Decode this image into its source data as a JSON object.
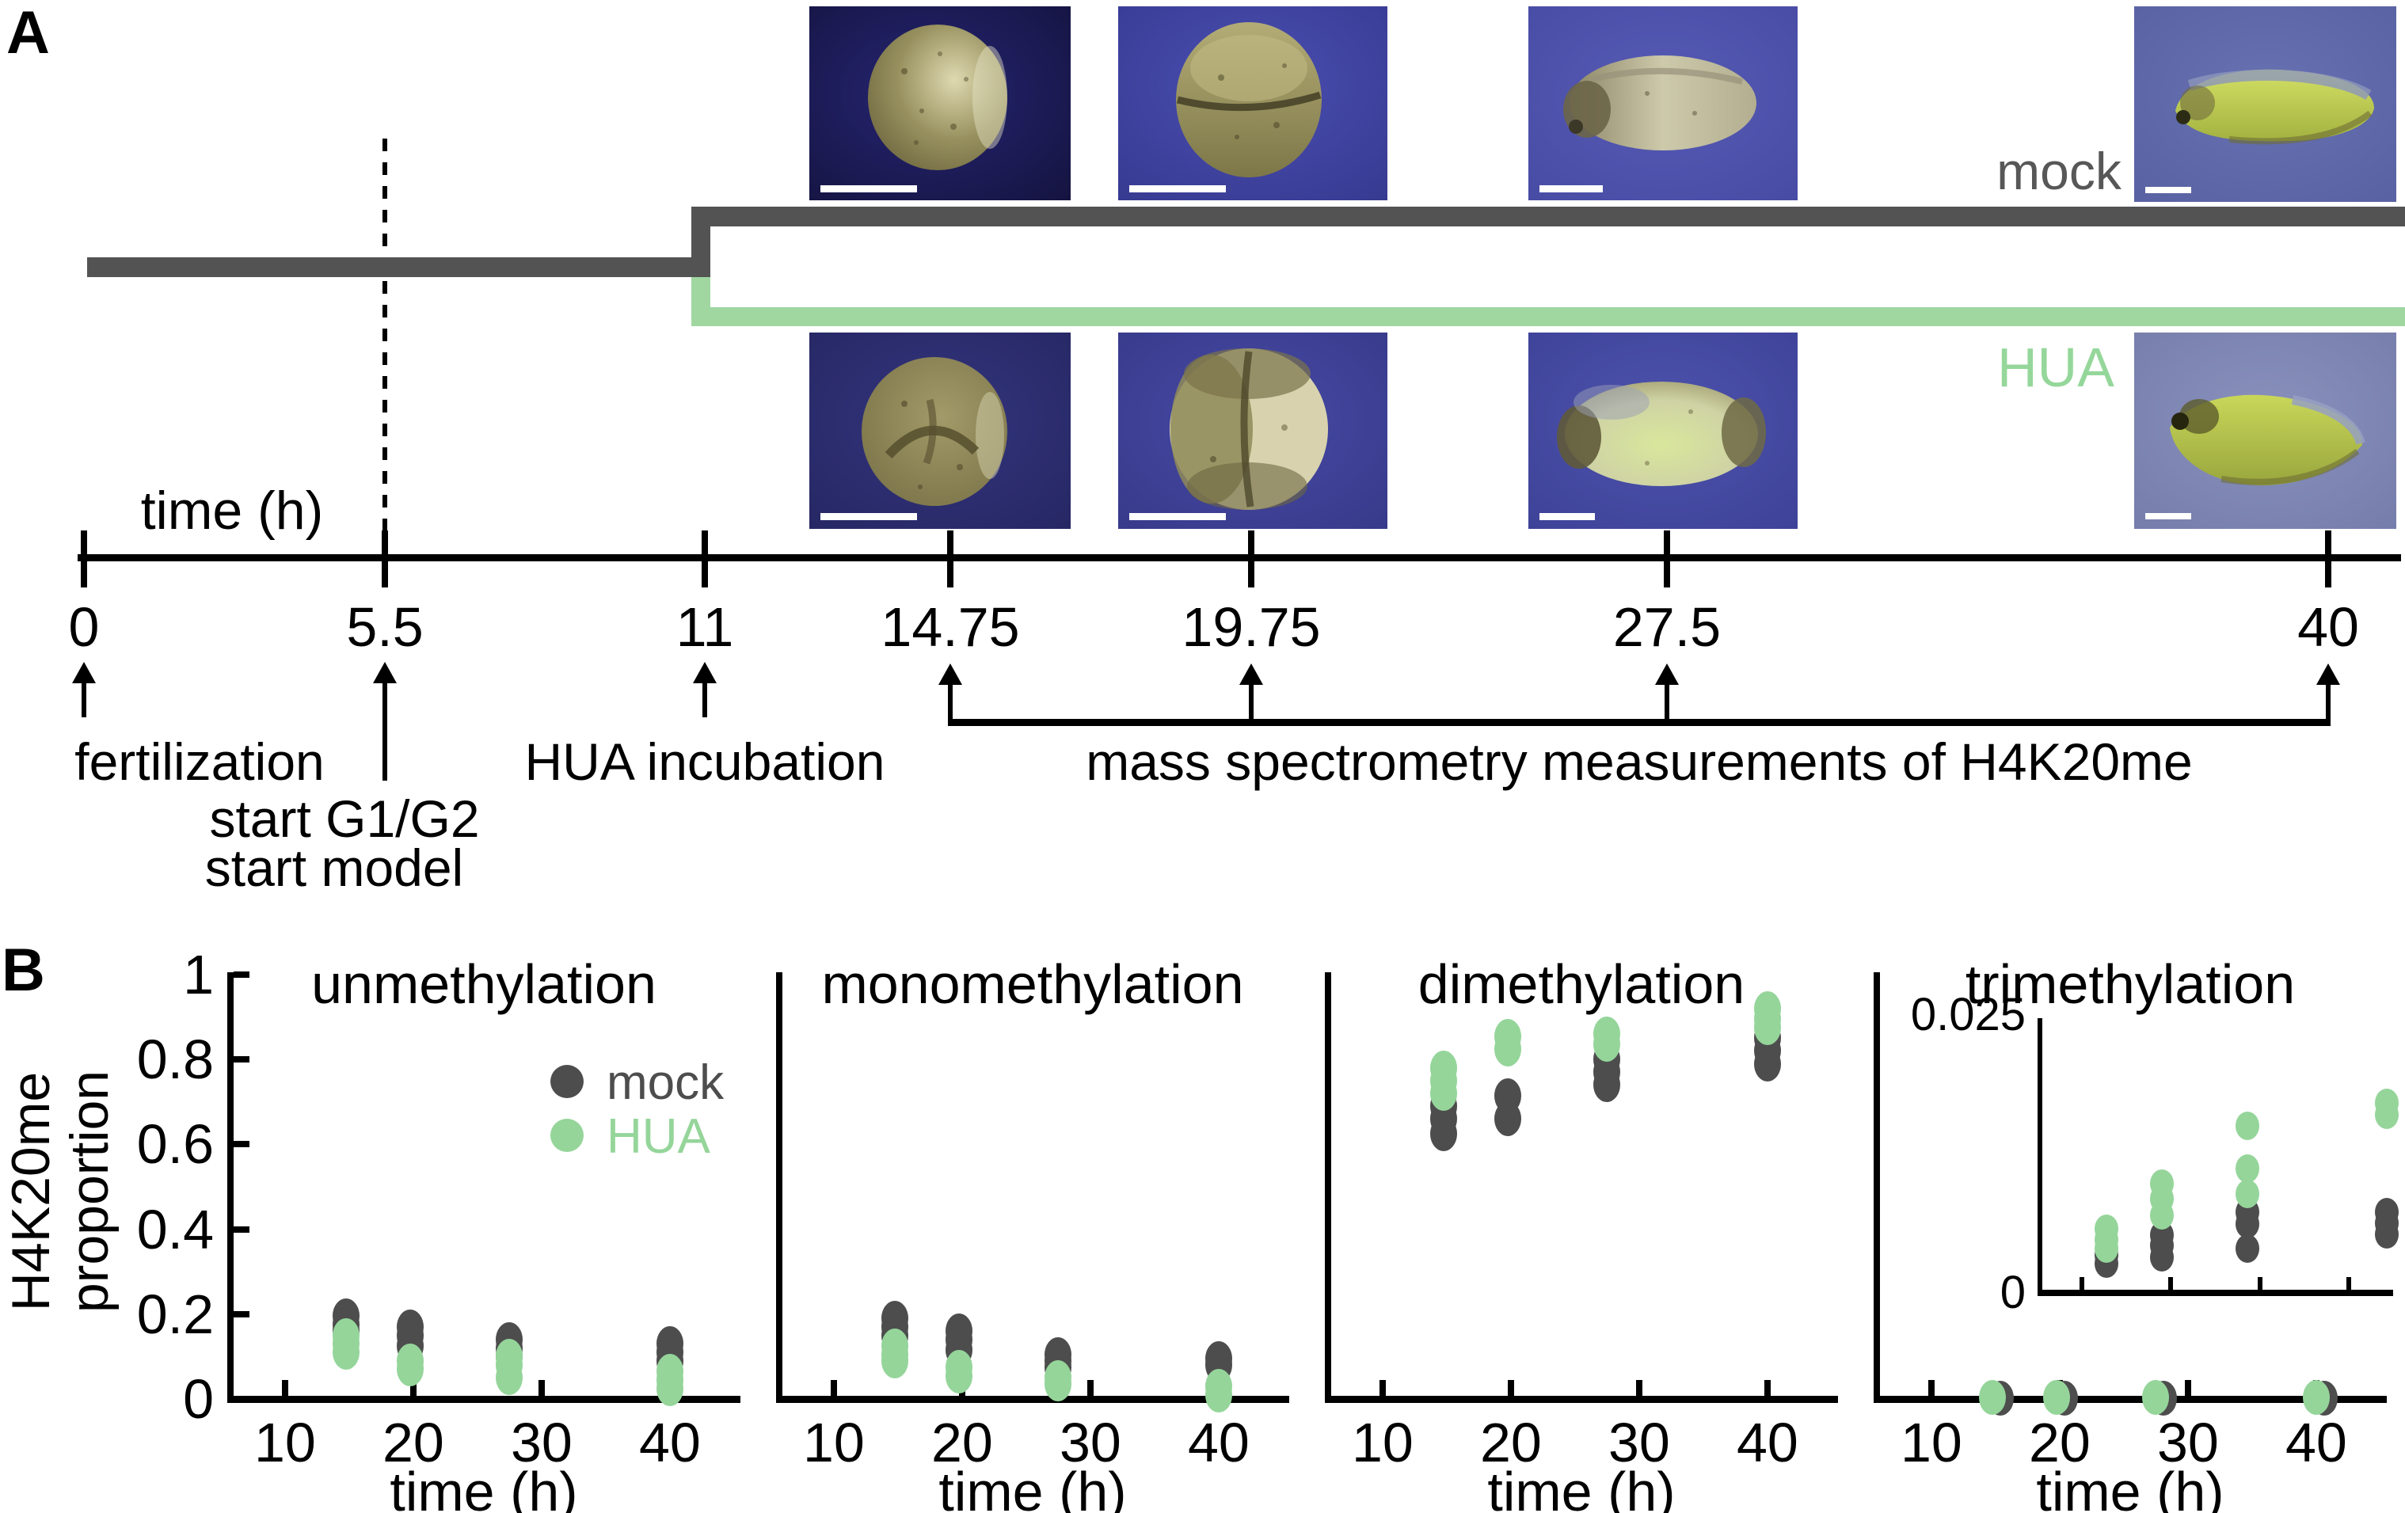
{
  "panel_a": {
    "label": "A",
    "timeline": {
      "axis_label": "time (h)",
      "ticks": [
        {
          "t": 0,
          "label": "0"
        },
        {
          "t": 5.5,
          "label": "5.5"
        },
        {
          "t": 11,
          "label": "11"
        },
        {
          "t": 14.75,
          "label": "14.75"
        },
        {
          "t": 19.75,
          "label": "19.75"
        },
        {
          "t": 27.5,
          "label": "27.5"
        },
        {
          "t": 40,
          "label": "40"
        }
      ]
    },
    "branches": {
      "mock_label": "mock",
      "hua_label": "HUA"
    },
    "annotations": {
      "fertilization": "fertilization",
      "start_g1g2": "start G1/G2",
      "start_model": "start model",
      "hua_incubation": "HUA incubation",
      "mass_spec": "mass spectrometry measurements of H4K20me"
    },
    "colors": {
      "mock_line": "#535353",
      "hua_line": "#a0d7a1",
      "mock_text": "#575757",
      "hua_text": "#95d79a"
    },
    "images": [
      {
        "name": "mock-embryo-14.75h",
        "bg": "#1d1c55"
      },
      {
        "name": "mock-embryo-19.75h",
        "bg": "#3c3f9f"
      },
      {
        "name": "mock-embryo-27.5h",
        "bg": "#4c50ac"
      },
      {
        "name": "mock-embryo-40h",
        "bg": "#5d66a8"
      },
      {
        "name": "hua-embryo-14.75h",
        "bg": "#2b2d74"
      },
      {
        "name": "hua-embryo-19.75h",
        "bg": "#3d3f94"
      },
      {
        "name": "hua-embryo-27.5h",
        "bg": "#4347a2"
      },
      {
        "name": "hua-embryo-40h",
        "bg": "#7e86b4"
      }
    ]
  },
  "panel_b": {
    "label": "B",
    "y_axis_label": [
      "H4K20me",
      "proportion"
    ],
    "legend": [
      {
        "label": "mock",
        "color": "#4d4d4d"
      },
      {
        "label": "HUA",
        "color": "#95d59a"
      }
    ]
  },
  "chart_data": [
    {
      "type": "scatter",
      "title": "unmethylation",
      "xlabel": "time (h)",
      "ylabel": "H4K20me proportion",
      "xlim": [
        5.5,
        45
      ],
      "ylim": [
        0,
        1
      ],
      "grid": false,
      "xticks": [
        {
          "t": 10,
          "label": "10"
        },
        {
          "t": 20,
          "label": "20"
        },
        {
          "t": 30,
          "label": "30"
        },
        {
          "t": 40,
          "label": "40"
        }
      ],
      "yticks": [
        {
          "v": 0,
          "label": "0"
        },
        {
          "v": 0.2,
          "label": "0.2"
        },
        {
          "v": 0.4,
          "label": "0.4"
        },
        {
          "v": 0.6,
          "label": "0.6"
        },
        {
          "v": 0.8,
          "label": "0.8"
        },
        {
          "v": 1,
          "label": "1"
        }
      ],
      "series": [
        {
          "name": "mock",
          "color": "#4d4d4d",
          "points": [
            [
              14.75,
              0.195
            ],
            [
              14.75,
              0.175
            ],
            [
              14.75,
              0.16
            ],
            [
              19.75,
              0.17
            ],
            [
              19.75,
              0.15
            ],
            [
              19.75,
              0.125
            ],
            [
              27.5,
              0.14
            ],
            [
              27.5,
              0.12
            ],
            [
              27.5,
              0.1
            ],
            [
              40,
              0.13
            ],
            [
              40,
              0.11
            ],
            [
              40,
              0.09
            ]
          ]
        },
        {
          "name": "HUA",
          "color": "#95d59a",
          "points": [
            [
              14.75,
              0.15
            ],
            [
              14.75,
              0.13
            ],
            [
              14.75,
              0.11
            ],
            [
              19.75,
              0.09
            ],
            [
              19.75,
              0.07
            ],
            [
              27.5,
              0.1
            ],
            [
              27.5,
              0.08
            ],
            [
              27.5,
              0.05
            ],
            [
              40,
              0.065
            ],
            [
              40,
              0.045
            ],
            [
              40,
              0.025
            ]
          ]
        }
      ]
    },
    {
      "type": "scatter",
      "title": "monomethylation",
      "xlabel": "time (h)",
      "xlim": [
        5.5,
        45
      ],
      "ylim": [
        0,
        1
      ],
      "grid": false,
      "xticks": [
        {
          "t": 10,
          "label": "10"
        },
        {
          "t": 20,
          "label": "20"
        },
        {
          "t": 30,
          "label": "30"
        },
        {
          "t": 40,
          "label": "40"
        }
      ],
      "yticks": [],
      "series": [
        {
          "name": "mock",
          "color": "#4d4d4d",
          "points": [
            [
              14.75,
              0.19
            ],
            [
              14.75,
              0.17
            ],
            [
              14.75,
              0.15
            ],
            [
              19.75,
              0.16
            ],
            [
              19.75,
              0.14
            ],
            [
              19.75,
              0.115
            ],
            [
              27.5,
              0.105
            ],
            [
              27.5,
              0.09
            ],
            [
              27.5,
              0.075
            ],
            [
              40,
              0.095
            ],
            [
              40,
              0.08
            ]
          ]
        },
        {
          "name": "HUA",
          "color": "#95d59a",
          "points": [
            [
              14.75,
              0.125
            ],
            [
              14.75,
              0.105
            ],
            [
              14.75,
              0.09
            ],
            [
              19.75,
              0.075
            ],
            [
              19.75,
              0.055
            ],
            [
              27.5,
              0.05
            ],
            [
              27.5,
              0.035
            ],
            [
              40,
              0.03
            ],
            [
              40,
              0.01
            ]
          ]
        }
      ]
    },
    {
      "type": "scatter",
      "title": "dimethylation",
      "xlabel": "time (h)",
      "xlim": [
        5.5,
        45
      ],
      "ylim": [
        0,
        1
      ],
      "grid": false,
      "xticks": [
        {
          "t": 10,
          "label": "10"
        },
        {
          "t": 20,
          "label": "20"
        },
        {
          "t": 30,
          "label": "30"
        },
        {
          "t": 40,
          "label": "40"
        }
      ],
      "yticks": [],
      "series": [
        {
          "name": "mock",
          "color": "#4d4d4d",
          "points": [
            [
              14.75,
              0.69
            ],
            [
              14.75,
              0.66
            ],
            [
              14.75,
              0.625
            ],
            [
              19.75,
              0.715
            ],
            [
              19.75,
              0.66
            ],
            [
              27.5,
              0.8
            ],
            [
              27.5,
              0.77
            ],
            [
              27.5,
              0.74
            ],
            [
              40,
              0.85
            ],
            [
              40,
              0.82
            ],
            [
              40,
              0.79
            ]
          ]
        },
        {
          "name": "HUA",
          "color": "#95d59a",
          "points": [
            [
              14.75,
              0.78
            ],
            [
              14.75,
              0.75
            ],
            [
              14.75,
              0.72
            ],
            [
              19.75,
              0.855
            ],
            [
              19.75,
              0.825
            ],
            [
              27.5,
              0.86
            ],
            [
              27.5,
              0.835
            ],
            [
              40,
              0.92
            ],
            [
              40,
              0.895
            ],
            [
              40,
              0.875
            ]
          ]
        }
      ]
    },
    {
      "type": "scatter",
      "title": "trimethylation",
      "xlabel": "time (h)",
      "xlim": [
        5.5,
        45
      ],
      "ylim": [
        0,
        1
      ],
      "grid": false,
      "xticks": [
        {
          "t": 10,
          "label": "10"
        },
        {
          "t": 20,
          "label": "20"
        },
        {
          "t": 30,
          "label": "30"
        },
        {
          "t": 40,
          "label": "40"
        }
      ],
      "yticks": [],
      "series": [
        {
          "name": "mock",
          "color": "#4d4d4d",
          "points": [
            [
              14.75,
              0.002
            ],
            [
              19.75,
              0.002
            ],
            [
              27.5,
              0.002
            ],
            [
              40,
              0.002
            ]
          ]
        },
        {
          "name": "HUA",
          "color": "#95d59a",
          "points": [
            [
              14.75,
              0.004
            ],
            [
              19.75,
              0.004
            ],
            [
              27.5,
              0.004
            ],
            [
              40,
              0.004
            ]
          ]
        }
      ],
      "inset": {
        "ylim": [
          0,
          0.025
        ],
        "xlim": [
          12,
          44
        ],
        "xticks": [
          16,
          24,
          32,
          40
        ],
        "ytick_labels": [
          {
            "v": 0.025,
            "label": "0.025"
          },
          {
            "v": 0,
            "label": "0"
          }
        ],
        "series": [
          {
            "name": "mock",
            "color": "#4d4d4d",
            "points": [
              [
                14.75,
                0.0034
              ],
              [
                14.75,
                0.0026
              ],
              [
                19.75,
                0.0052
              ],
              [
                19.75,
                0.0043
              ],
              [
                19.75,
                0.0032
              ],
              [
                27.5,
                0.0073
              ],
              [
                27.5,
                0.0062
              ],
              [
                27.5,
                0.004
              ],
              [
                40,
                0.0073
              ],
              [
                40,
                0.0063
              ],
              [
                40,
                0.0053
              ]
            ]
          },
          {
            "name": "HUA",
            "color": "#95d59a",
            "points": [
              [
                14.75,
                0.0058
              ],
              [
                14.75,
                0.0048
              ],
              [
                14.75,
                0.004
              ],
              [
                19.75,
                0.0098
              ],
              [
                19.75,
                0.0085
              ],
              [
                19.75,
                0.007
              ],
              [
                27.5,
                0.015
              ],
              [
                27.5,
                0.0112
              ],
              [
                27.5,
                0.0089
              ],
              [
                40,
                0.0171
              ],
              [
                40,
                0.016
              ]
            ]
          }
        ]
      }
    }
  ]
}
